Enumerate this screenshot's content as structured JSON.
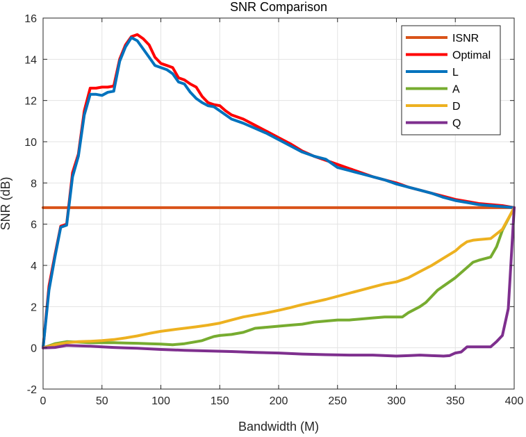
{
  "chart_data": {
    "type": "line",
    "title": "SNR Comparison",
    "xlabel": "Bandwidth (M)",
    "ylabel": "SNR (dB)",
    "xlim": [
      0,
      400
    ],
    "ylim": [
      -2,
      16
    ],
    "xticks": [
      "0",
      "50",
      "100",
      "150",
      "200",
      "250",
      "300",
      "350",
      "400"
    ],
    "yticks": [
      "-2",
      "0",
      "2",
      "4",
      "6",
      "8",
      "10",
      "12",
      "14",
      "16"
    ],
    "grid": true,
    "legend_position": "top-right",
    "series": [
      {
        "name": "ISNR",
        "color": "#D95319",
        "x": [
          0,
          400
        ],
        "y": [
          6.8,
          6.8
        ]
      },
      {
        "name": "Optimal",
        "color": "#FF0000",
        "x": [
          0,
          5,
          10,
          15,
          20,
          25,
          30,
          35,
          40,
          45,
          50,
          55,
          60,
          65,
          70,
          75,
          80,
          85,
          90,
          95,
          100,
          105,
          110,
          115,
          120,
          125,
          130,
          135,
          140,
          145,
          150,
          155,
          160,
          170,
          180,
          190,
          200,
          210,
          220,
          230,
          240,
          250,
          260,
          270,
          280,
          290,
          300,
          310,
          320,
          330,
          340,
          350,
          360,
          370,
          380,
          390,
          400
        ],
        "y": [
          0,
          3.0,
          4.5,
          5.9,
          6.0,
          8.5,
          9.4,
          11.5,
          12.6,
          12.6,
          12.65,
          12.65,
          12.7,
          14.0,
          14.7,
          15.1,
          15.2,
          15.0,
          14.7,
          14.1,
          13.8,
          13.7,
          13.6,
          13.1,
          13.0,
          12.8,
          12.65,
          12.2,
          11.9,
          11.8,
          11.75,
          11.5,
          11.3,
          11.1,
          10.8,
          10.5,
          10.2,
          9.9,
          9.55,
          9.3,
          9.1,
          8.9,
          8.7,
          8.5,
          8.3,
          8.15,
          8.0,
          7.8,
          7.65,
          7.5,
          7.35,
          7.2,
          7.1,
          7.0,
          6.95,
          6.9,
          6.8
        ]
      },
      {
        "name": "L",
        "color": "#0072BD",
        "x": [
          0,
          5,
          10,
          15,
          20,
          25,
          30,
          35,
          40,
          45,
          50,
          55,
          60,
          65,
          70,
          75,
          80,
          85,
          90,
          95,
          100,
          105,
          110,
          115,
          120,
          125,
          130,
          135,
          140,
          145,
          150,
          155,
          160,
          170,
          180,
          190,
          200,
          210,
          220,
          230,
          240,
          250,
          260,
          270,
          280,
          290,
          300,
          310,
          320,
          330,
          340,
          350,
          360,
          370,
          380,
          390,
          400
        ],
        "y": [
          0,
          2.8,
          4.4,
          5.85,
          5.95,
          8.3,
          9.3,
          11.3,
          12.3,
          12.3,
          12.25,
          12.4,
          12.45,
          13.9,
          14.6,
          15.05,
          14.9,
          14.5,
          14.1,
          13.7,
          13.6,
          13.5,
          13.3,
          12.9,
          12.8,
          12.4,
          12.1,
          11.9,
          11.75,
          11.7,
          11.5,
          11.3,
          11.1,
          10.9,
          10.65,
          10.4,
          10.1,
          9.8,
          9.5,
          9.3,
          9.15,
          8.75,
          8.6,
          8.45,
          8.3,
          8.15,
          7.95,
          7.8,
          7.65,
          7.5,
          7.3,
          7.15,
          7.05,
          6.95,
          6.9,
          6.85,
          6.8
        ]
      },
      {
        "name": "A",
        "color": "#77AC30",
        "x": [
          0,
          10,
          20,
          30,
          40,
          50,
          60,
          70,
          80,
          90,
          100,
          110,
          120,
          130,
          135,
          140,
          145,
          150,
          160,
          170,
          180,
          190,
          200,
          210,
          220,
          230,
          240,
          250,
          260,
          270,
          280,
          290,
          300,
          305,
          310,
          320,
          325,
          330,
          335,
          340,
          350,
          360,
          365,
          370,
          380,
          385,
          390,
          400
        ],
        "y": [
          0,
          0.2,
          0.3,
          0.28,
          0.25,
          0.25,
          0.25,
          0.23,
          0.22,
          0.2,
          0.18,
          0.15,
          0.2,
          0.3,
          0.35,
          0.45,
          0.55,
          0.6,
          0.65,
          0.75,
          0.95,
          1.0,
          1.05,
          1.1,
          1.15,
          1.25,
          1.3,
          1.35,
          1.35,
          1.4,
          1.45,
          1.5,
          1.5,
          1.5,
          1.7,
          2.0,
          2.2,
          2.5,
          2.8,
          3.0,
          3.4,
          3.9,
          4.15,
          4.25,
          4.4,
          4.9,
          5.7,
          6.8
        ]
      },
      {
        "name": "D",
        "color": "#EDB120",
        "x": [
          0,
          10,
          20,
          30,
          40,
          50,
          60,
          70,
          80,
          90,
          100,
          110,
          120,
          130,
          140,
          150,
          160,
          170,
          180,
          190,
          200,
          210,
          220,
          230,
          240,
          250,
          260,
          270,
          280,
          290,
          300,
          310,
          320,
          330,
          340,
          350,
          355,
          360,
          365,
          370,
          380,
          390,
          400
        ],
        "y": [
          0,
          0.15,
          0.25,
          0.3,
          0.32,
          0.35,
          0.4,
          0.48,
          0.58,
          0.7,
          0.8,
          0.88,
          0.95,
          1.02,
          1.1,
          1.2,
          1.35,
          1.5,
          1.6,
          1.7,
          1.82,
          1.95,
          2.1,
          2.22,
          2.35,
          2.5,
          2.65,
          2.8,
          2.95,
          3.1,
          3.2,
          3.4,
          3.7,
          4.0,
          4.35,
          4.7,
          4.95,
          5.15,
          5.22,
          5.25,
          5.3,
          5.75,
          6.8
        ]
      },
      {
        "name": "Q",
        "color": "#7E2F8E",
        "x": [
          0,
          10,
          20,
          30,
          40,
          50,
          60,
          70,
          80,
          90,
          100,
          120,
          140,
          160,
          180,
          200,
          220,
          240,
          260,
          280,
          300,
          310,
          320,
          330,
          340,
          345,
          350,
          355,
          360,
          365,
          370,
          380,
          385,
          390,
          395,
          400
        ],
        "y": [
          0,
          0.02,
          0.12,
          0.1,
          0.08,
          0.05,
          0.02,
          0.0,
          -0.02,
          -0.05,
          -0.08,
          -0.12,
          -0.15,
          -0.18,
          -0.22,
          -0.25,
          -0.3,
          -0.33,
          -0.35,
          -0.35,
          -0.4,
          -0.38,
          -0.35,
          -0.38,
          -0.4,
          -0.38,
          -0.25,
          -0.2,
          0.05,
          0.05,
          0.05,
          0.05,
          0.3,
          0.6,
          1.9,
          6.8
        ]
      }
    ]
  }
}
